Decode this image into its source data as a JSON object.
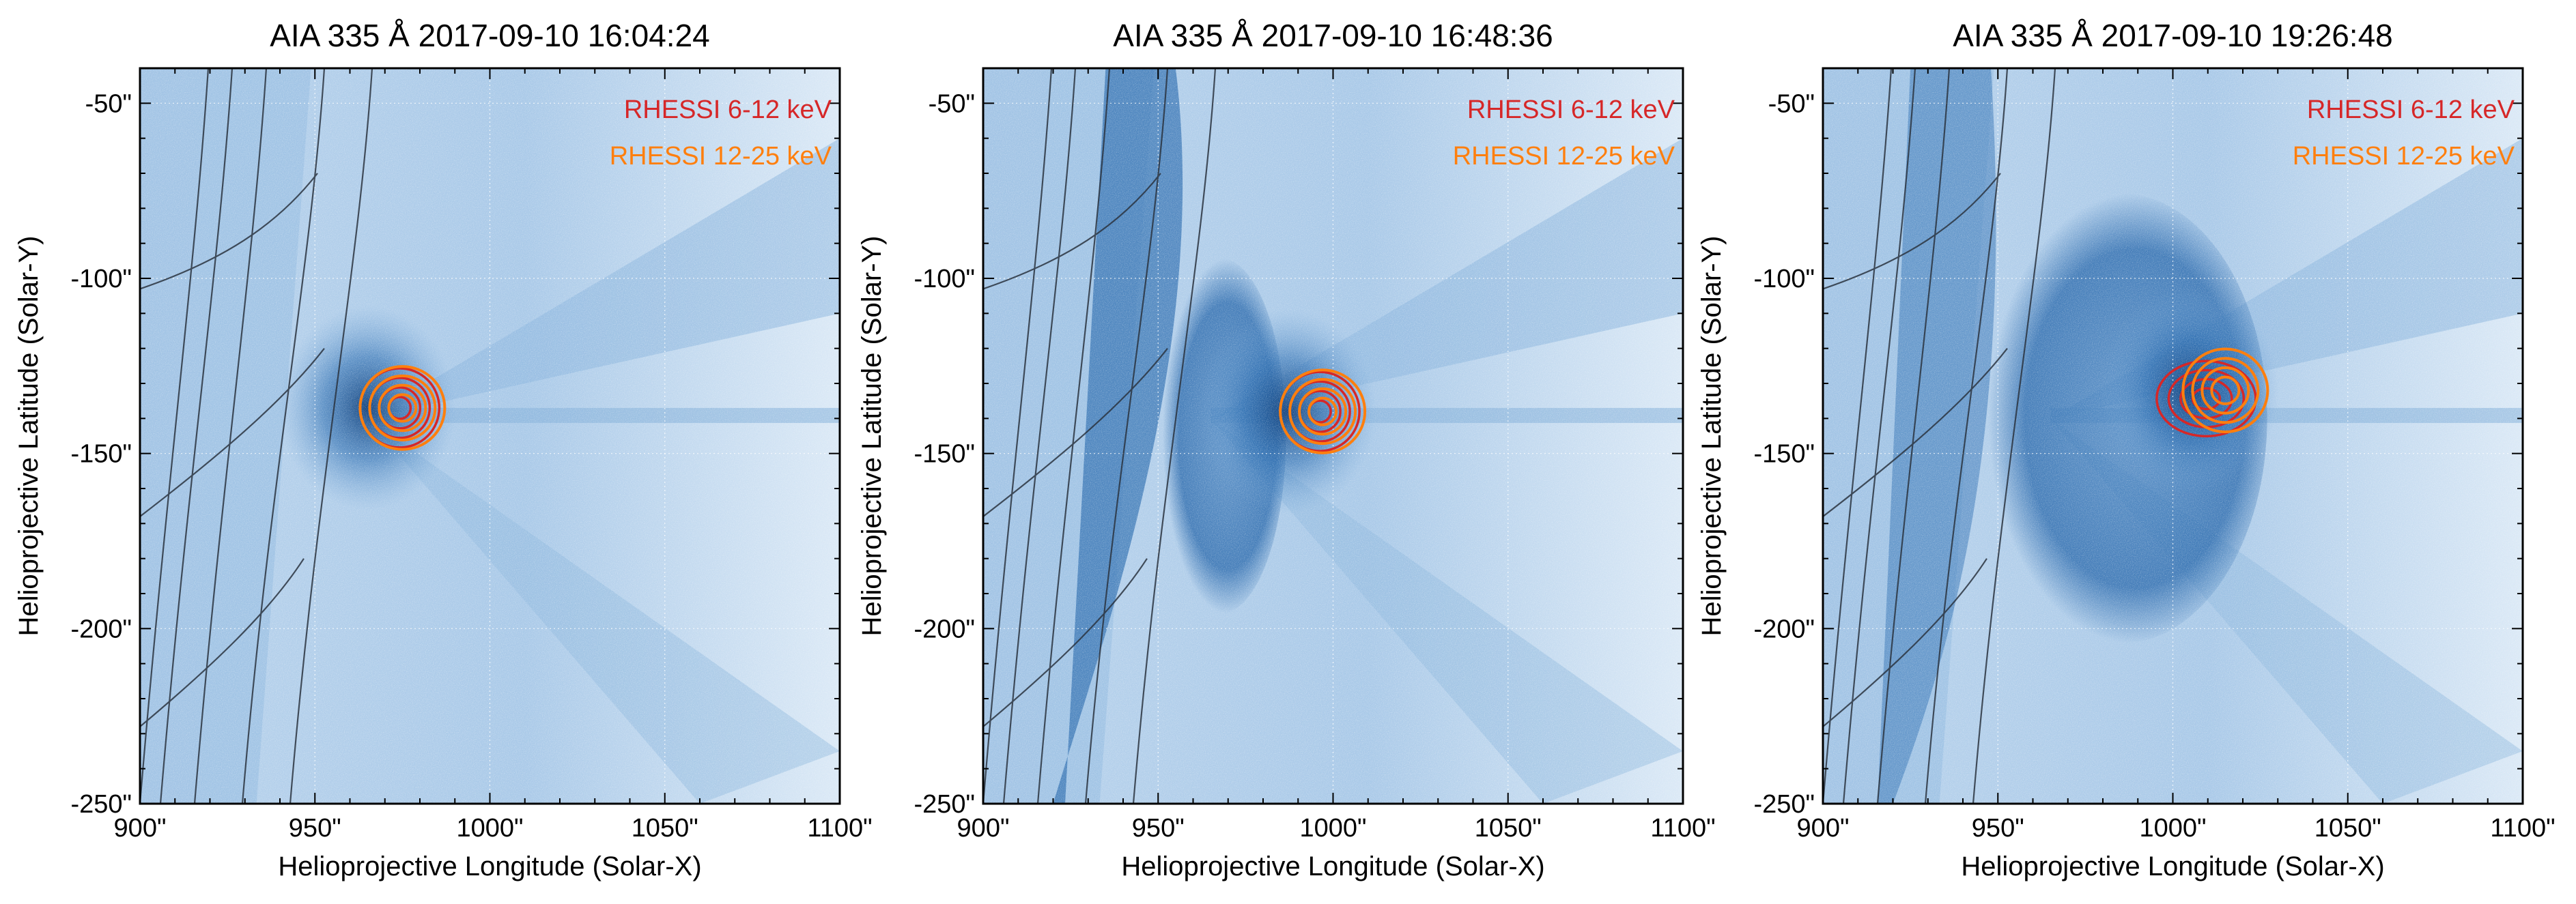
{
  "figure": {
    "ylabel": "Helioprojective Latitude (Solar-Y)",
    "xlabel": "Helioprojective Longitude (Solar-X)",
    "xticks": [
      "900\"",
      "950\"",
      "1000\"",
      "1050\"",
      "1100\""
    ],
    "yticks": [
      "-50\"",
      "-100\"",
      "-150\"",
      "-200\"",
      "-250\""
    ],
    "legend": [
      {
        "label": "RHESSI 6-12 keV",
        "color": "#d62728"
      },
      {
        "label": "RHESSI 12-25 keV",
        "color": "#ff7f0e"
      }
    ],
    "panels": [
      {
        "title": "AIA 335 Å 2017-09-10 16:04:24",
        "source_center": [
          975,
          -137
        ],
        "shock": "faint"
      },
      {
        "title": "AIA 335 Å 2017-09-10 16:48:36",
        "source_center": [
          997,
          -138
        ],
        "shock": "bubble"
      },
      {
        "title": "AIA 335 Å 2017-09-10 19:26:48",
        "source_center": [
          1015,
          -132
        ],
        "shock": "large"
      }
    ],
    "axes": {
      "xlim": [
        900,
        1100
      ],
      "ylim": [
        -250,
        -40
      ]
    },
    "colors": {
      "bg_light": "#d6e6f5",
      "bg_mid": "#8fb8dd",
      "dark": "#1d5d9e",
      "grid": "#ffffff",
      "frame": "#000000"
    }
  }
}
